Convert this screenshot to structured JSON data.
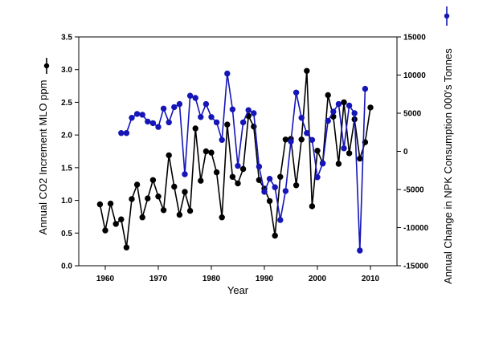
{
  "chart_data": {
    "type": "line",
    "title": "",
    "xlabel": "Year",
    "ylabel": "Annual CO2 Increment MLO ppm",
    "y2label": "Annual Change in NPK Consumption 000's Tonnes",
    "xlim": [
      1955,
      2015
    ],
    "ylim": [
      0.0,
      3.5
    ],
    "y2lim": [
      -15000,
      15000
    ],
    "xticks": [
      1960,
      1970,
      1980,
      1990,
      2000,
      2010
    ],
    "yticks": [
      "0.0",
      "0.5",
      "1.0",
      "1.5",
      "2.0",
      "2.5",
      "3.0",
      "3.5"
    ],
    "y2ticks": [
      "-15000",
      "-10000",
      "-5000",
      "0",
      "5000",
      "10000",
      "15000"
    ],
    "series": [
      {
        "name": "Annual CO2 Increment MLO ppm",
        "axis": "left",
        "color": "#000000",
        "x": [
          1959,
          1960,
          1961,
          1962,
          1963,
          1964,
          1965,
          1966,
          1967,
          1968,
          1969,
          1970,
          1971,
          1972,
          1973,
          1974,
          1975,
          1976,
          1977,
          1978,
          1979,
          1980,
          1981,
          1982,
          1983,
          1984,
          1985,
          1986,
          1987,
          1988,
          1989,
          1990,
          1991,
          1992,
          1993,
          1994,
          1995,
          1996,
          1997,
          1998,
          1999,
          2000,
          2001,
          2002,
          2003,
          2004,
          2005,
          2006,
          2007,
          2008,
          2009,
          2010
        ],
        "values": [
          0.94,
          0.54,
          0.95,
          0.64,
          0.71,
          0.28,
          1.02,
          1.24,
          0.74,
          1.03,
          1.31,
          1.06,
          0.85,
          1.69,
          1.21,
          0.78,
          1.13,
          0.84,
          2.1,
          1.3,
          1.75,
          1.73,
          1.43,
          0.74,
          2.16,
          1.36,
          1.26,
          1.48,
          2.29,
          2.13,
          1.31,
          1.18,
          0.99,
          0.46,
          1.36,
          1.93,
          1.94,
          1.23,
          1.93,
          2.98,
          0.91,
          1.76,
          1.57,
          2.61,
          2.28,
          1.56,
          2.5,
          1.72,
          2.24,
          1.64,
          1.89,
          2.42
        ]
      },
      {
        "name": "Annual Change in NPK Consumption 000's Tonnes",
        "axis": "right",
        "color": "#1515b8",
        "x": [
          1963,
          1964,
          1965,
          1966,
          1967,
          1968,
          1969,
          1970,
          1971,
          1972,
          1973,
          1974,
          1975,
          1976,
          1977,
          1978,
          1979,
          1980,
          1981,
          1982,
          1983,
          1984,
          1985,
          1986,
          1987,
          1988,
          1989,
          1990,
          1991,
          1992,
          1993,
          1994,
          1995,
          1996,
          1997,
          1998,
          1999,
          2000,
          2001,
          2002,
          2003,
          2004,
          2005,
          2006,
          2007,
          2008,
          2009
        ],
        "values": [
          2400,
          2400,
          4400,
          4900,
          4800,
          3900,
          3700,
          3200,
          5600,
          3800,
          5800,
          6200,
          -3000,
          7300,
          7000,
          4500,
          6200,
          4500,
          3800,
          1500,
          10200,
          5500,
          -1900,
          3800,
          5400,
          5000,
          -2000,
          -5300,
          -3600,
          -4700,
          -9000,
          -5200,
          1300,
          7700,
          4400,
          2400,
          1500,
          -3400,
          -1600,
          4000,
          5200,
          6200,
          400,
          6000,
          5000,
          -13000,
          8200
        ]
      }
    ]
  }
}
